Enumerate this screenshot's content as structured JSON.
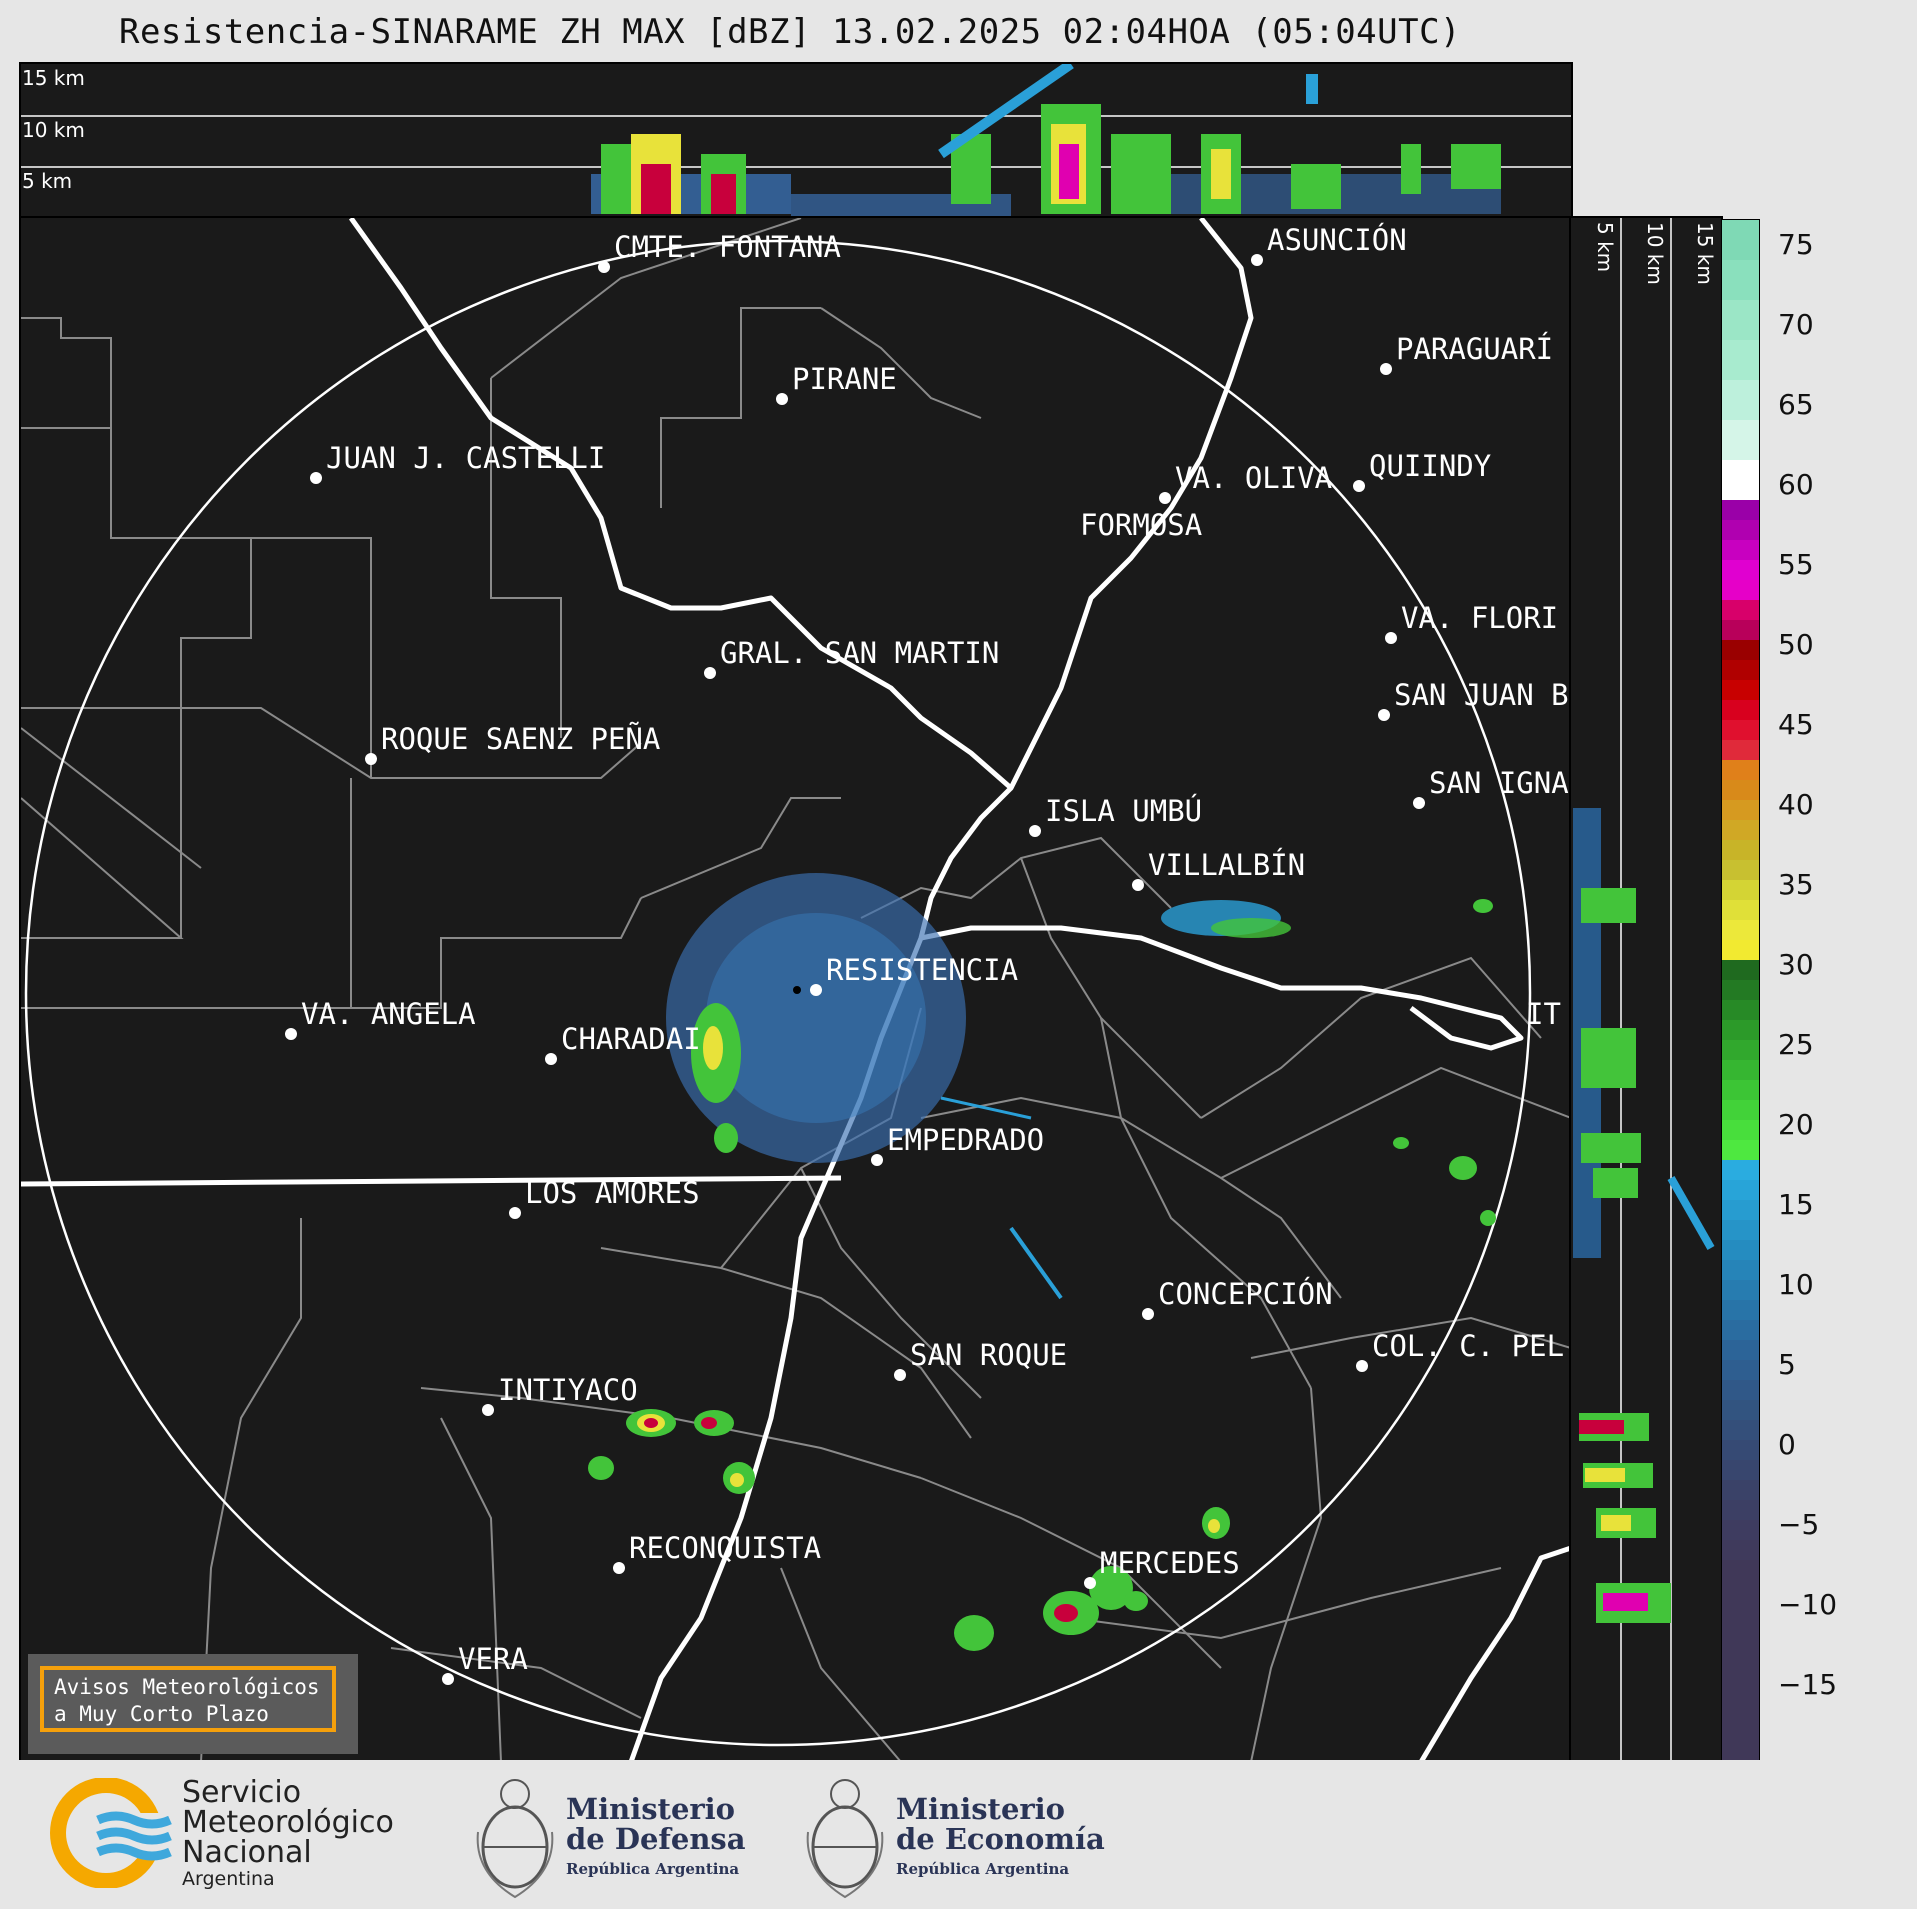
{
  "title": "Resistencia-SINARAME ZH MAX [dBZ] 13.02.2025 02:04HOA (05:04UTC)",
  "top_strip": {
    "labels": [
      "15 km",
      "10 km",
      "5 km"
    ]
  },
  "side_strip": {
    "labels": [
      "5 km",
      "10 km",
      "15 km"
    ]
  },
  "colorbar": {
    "ticks": [
      "75",
      "70",
      "65",
      "60",
      "55",
      "50",
      "45",
      "40",
      "35",
      "30",
      "25",
      "20",
      "15",
      "10",
      "5",
      "0",
      "−5",
      "−10",
      "−15"
    ],
    "unit": "dBZ"
  },
  "cities": [
    {
      "name": "CMTE. FONTANA"
    },
    {
      "name": "ASUNCIÓN"
    },
    {
      "name": "PARAGUARÍ"
    },
    {
      "name": "PIRANE"
    },
    {
      "name": "JUAN J. CASTELLI"
    },
    {
      "name": "VA. OLIVA"
    },
    {
      "name": "QUIINDY"
    },
    {
      "name": "FORMOSA"
    },
    {
      "name": "VA. FLORI"
    },
    {
      "name": "GRAL. SAN MARTIN"
    },
    {
      "name": "SAN JUAN B"
    },
    {
      "name": "ROQUE SAENZ PEÑA"
    },
    {
      "name": "SAN IGNA"
    },
    {
      "name": "ISLA UMBÚ"
    },
    {
      "name": "VILLALBÍN"
    },
    {
      "name": "RESISTENCIA"
    },
    {
      "name": "VA. ANGELA"
    },
    {
      "name": "CHARADAI"
    },
    {
      "name": "IT"
    },
    {
      "name": "EMPEDRADO"
    },
    {
      "name": "LOS AMORES"
    },
    {
      "name": "CONCEPCIÓN"
    },
    {
      "name": "SAN ROQUE"
    },
    {
      "name": "COL. C. PEL"
    },
    {
      "name": "INTIYACO"
    },
    {
      "name": "RECONQUISTA"
    },
    {
      "name": "MERCEDES"
    },
    {
      "name": "VERA"
    }
  ],
  "notice": {
    "line1": "Avisos Meteorológicos",
    "line2": "a Muy Corto Plazo"
  },
  "logos": {
    "smn": {
      "line1": "Servicio",
      "line2": "Meteorológico",
      "line3": "Nacional",
      "line4": "Argentina"
    },
    "defensa": {
      "line1": "Ministerio",
      "line2": "de Defensa",
      "sub": "República Argentina"
    },
    "economia": {
      "line1": "Ministerio",
      "line2": "de Economía",
      "sub": "República Argentina"
    }
  }
}
